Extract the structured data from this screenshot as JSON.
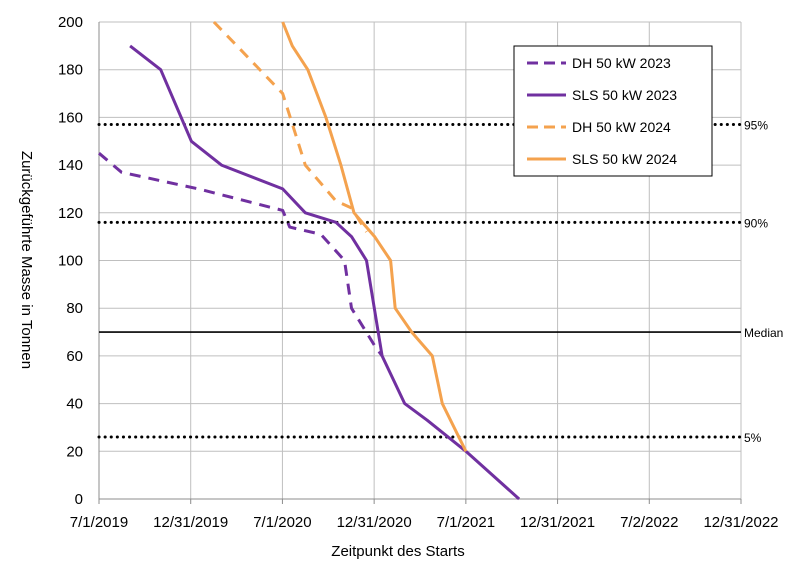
{
  "chart_data": {
    "type": "line",
    "title": "",
    "xlabel": "Zeitpunkt des Starts",
    "ylabel": "Zurückgeführte Masse in Tonnen",
    "xlim": [
      "2019-07-01",
      "2022-12-31"
    ],
    "ylim": [
      0,
      200
    ],
    "x_ticks": [
      "7/1/2019",
      "12/31/2019",
      "7/1/2020",
      "12/31/2020",
      "7/1/2021",
      "12/31/2021",
      "7/2/2022",
      "12/31/2022"
    ],
    "y_ticks": [
      0,
      20,
      40,
      60,
      80,
      100,
      120,
      140,
      160,
      180,
      200
    ],
    "grid": true,
    "legend_position": "top-right",
    "series": [
      {
        "name": "DH 50 kW 2023",
        "color": "#7030a0",
        "dash": "dashed",
        "points": [
          {
            "x": "2019-07-01",
            "y": 145
          },
          {
            "x": "2019-08-15",
            "y": 137
          },
          {
            "x": "2020-01-15",
            "y": 130
          },
          {
            "x": "2020-07-01",
            "y": 121
          },
          {
            "x": "2020-07-15",
            "y": 114
          },
          {
            "x": "2020-09-15",
            "y": 111
          },
          {
            "x": "2020-11-01",
            "y": 100
          },
          {
            "x": "2020-11-15",
            "y": 80
          },
          {
            "x": "2021-01-01",
            "y": 64
          },
          {
            "x": "2021-01-15",
            "y": 60
          }
        ]
      },
      {
        "name": "SLS 50 kW 2023",
        "color": "#7030a0",
        "dash": "solid",
        "points": [
          {
            "x": "2019-09-01",
            "y": 190
          },
          {
            "x": "2019-11-01",
            "y": 180
          },
          {
            "x": "2020-01-01",
            "y": 150
          },
          {
            "x": "2020-03-01",
            "y": 140
          },
          {
            "x": "2020-07-01",
            "y": 130
          },
          {
            "x": "2020-08-15",
            "y": 120
          },
          {
            "x": "2020-10-15",
            "y": 116
          },
          {
            "x": "2020-11-15",
            "y": 110
          },
          {
            "x": "2020-12-15",
            "y": 100
          },
          {
            "x": "2021-01-15",
            "y": 60
          },
          {
            "x": "2021-03-01",
            "y": 40
          },
          {
            "x": "2021-04-15",
            "y": 33
          },
          {
            "x": "2021-07-01",
            "y": 20
          },
          {
            "x": "2021-10-15",
            "y": 0
          }
        ]
      },
      {
        "name": "DH 50 kW 2024",
        "color": "#f4a24e",
        "dash": "dashed",
        "points": [
          {
            "x": "2020-02-15",
            "y": 200
          },
          {
            "x": "2020-04-01",
            "y": 190
          },
          {
            "x": "2020-07-01",
            "y": 170
          },
          {
            "x": "2020-08-15",
            "y": 140
          },
          {
            "x": "2020-10-15",
            "y": 125
          },
          {
            "x": "2020-11-15",
            "y": 122
          },
          {
            "x": "2020-12-15",
            "y": 112
          }
        ]
      },
      {
        "name": "SLS 50 kW 2024",
        "color": "#f4a24e",
        "dash": "solid",
        "points": [
          {
            "x": "2020-07-01",
            "y": 200
          },
          {
            "x": "2020-07-20",
            "y": 190
          },
          {
            "x": "2020-08-20",
            "y": 180
          },
          {
            "x": "2020-09-25",
            "y": 160
          },
          {
            "x": "2020-10-25",
            "y": 140
          },
          {
            "x": "2020-11-20",
            "y": 120
          },
          {
            "x": "2020-12-31",
            "y": 110
          },
          {
            "x": "2021-02-01",
            "y": 100
          },
          {
            "x": "2021-02-10",
            "y": 80
          },
          {
            "x": "2021-03-15",
            "y": 70
          },
          {
            "x": "2021-04-25",
            "y": 60
          },
          {
            "x": "2021-05-15",
            "y": 40
          },
          {
            "x": "2021-07-01",
            "y": 20
          }
        ]
      }
    ],
    "reference_lines": [
      {
        "label": "95%",
        "y": 157,
        "style": "dotted"
      },
      {
        "label": "90%",
        "y": 116,
        "style": "dotted"
      },
      {
        "label": "Median",
        "y": 70,
        "style": "solid"
      },
      {
        "label": "5%",
        "y": 26,
        "style": "dotted"
      }
    ]
  }
}
